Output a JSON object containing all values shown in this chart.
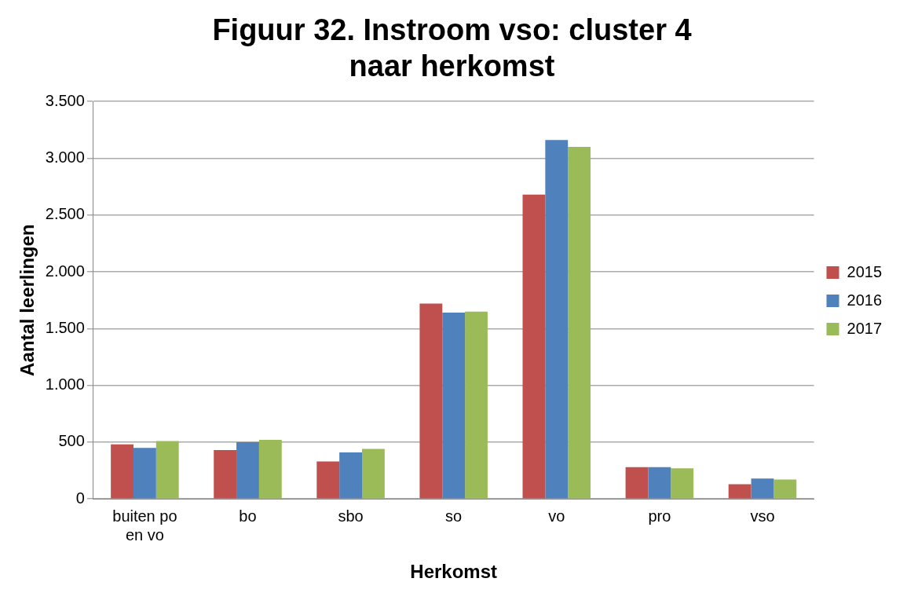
{
  "chart_data": {
    "type": "bar",
    "title": "Figuur 32. Instroom vso: cluster 4 naar herkomst",
    "xlabel": "Herkomst",
    "ylabel": "Aantal leerlingen",
    "categories": [
      "buiten po en vo",
      "bo",
      "sbo",
      "so",
      "vo",
      "pro",
      "vso"
    ],
    "series": [
      {
        "name": "2015",
        "color": "#c0504d",
        "values": [
          480,
          430,
          330,
          1720,
          2680,
          280,
          130
        ]
      },
      {
        "name": "2016",
        "color": "#4f81bd",
        "values": [
          450,
          500,
          410,
          1640,
          3160,
          280,
          180
        ]
      },
      {
        "name": "2017",
        "color": "#9bbb59",
        "values": [
          510,
          520,
          440,
          1650,
          3100,
          270,
          170
        ]
      }
    ],
    "ylim": [
      0,
      3500
    ],
    "yticks": [
      {
        "value": 0,
        "label": "0"
      },
      {
        "value": 500,
        "label": "500"
      },
      {
        "value": 1000,
        "label": "1.000"
      },
      {
        "value": 1500,
        "label": "1.500"
      },
      {
        "value": 2000,
        "label": "2.000"
      },
      {
        "value": 2500,
        "label": "2.500"
      },
      {
        "value": 3000,
        "label": "3.000"
      },
      {
        "value": 3500,
        "label": "3.500"
      }
    ],
    "grid": "y",
    "legend": "right"
  }
}
